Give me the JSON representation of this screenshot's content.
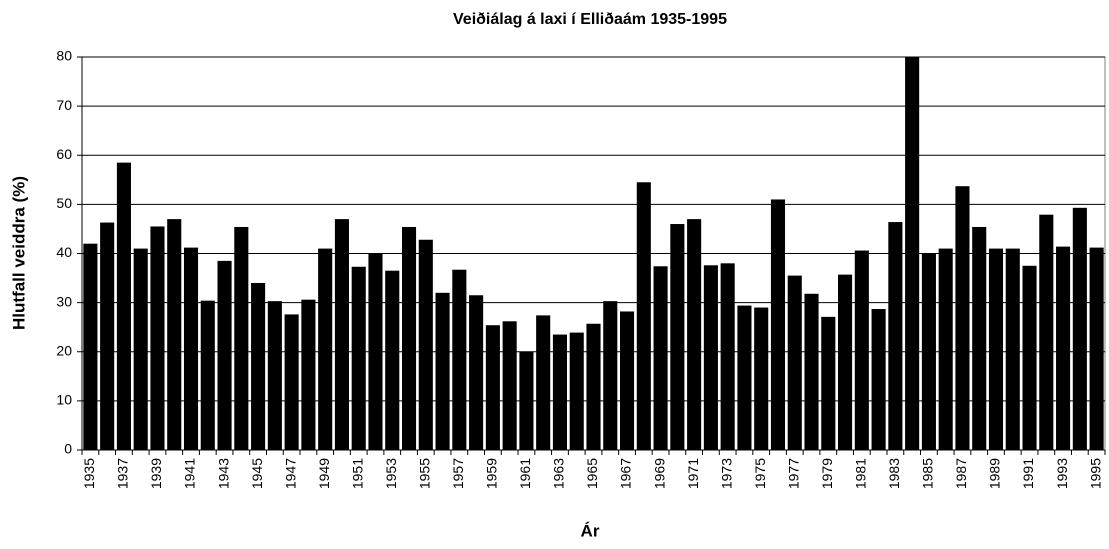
{
  "chart_data": {
    "type": "bar",
    "title": "Veiðiálag á laxi í Elliðaám 1935-1995",
    "xlabel": "Ár",
    "ylabel": "Hlutfall veiddra (%)",
    "categories": [
      "1935",
      null,
      "1937",
      null,
      "1939",
      null,
      "1941",
      null,
      "1943",
      null,
      "1945",
      null,
      "1947",
      null,
      "1949",
      null,
      "1951",
      null,
      "1953",
      null,
      "1955",
      null,
      "1957",
      null,
      "1959",
      null,
      "1961",
      null,
      "1963",
      null,
      "1965",
      null,
      "1967",
      null,
      "1969",
      null,
      "1971",
      null,
      "1973",
      null,
      "1975",
      null,
      "1977",
      null,
      "1979",
      null,
      "1981",
      null,
      "1983",
      null,
      "1985",
      null,
      "1987",
      null,
      "1989",
      null,
      "1991",
      null,
      "1993",
      null,
      "1995"
    ],
    "values": [
      42,
      46.3,
      58.5,
      41,
      45.5,
      47,
      41.2,
      30.4,
      38.5,
      45.4,
      34,
      30.3,
      27.6,
      30.6,
      41,
      47,
      37.3,
      40,
      36.5,
      45.4,
      42.8,
      32,
      36.7,
      31.5,
      25.4,
      26.2,
      20,
      27.4,
      23.5,
      23.9,
      25.7,
      30.3,
      28.2,
      54.5,
      37.4,
      46,
      47,
      37.6,
      38,
      29.4,
      29,
      51,
      35.5,
      31.8,
      27.1,
      35.7,
      40.6,
      28.7,
      46.4,
      80,
      40,
      41,
      53.7,
      45.4,
      41,
      41,
      37.5,
      47.9,
      41.4,
      49.3,
      41.2
    ],
    "color": "#000000",
    "ylim": [
      0,
      80
    ],
    "yticks": [
      0,
      10,
      20,
      30,
      40,
      50,
      60,
      70,
      80
    ],
    "grid": true
  }
}
